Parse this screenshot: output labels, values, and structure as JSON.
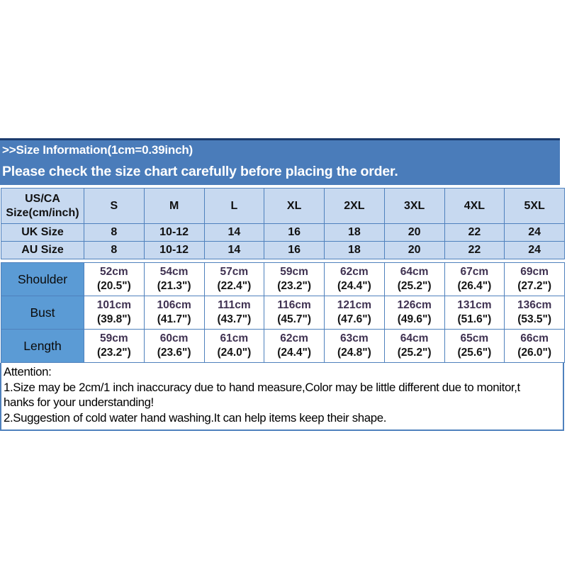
{
  "banner": {
    "title": ">>Size Information(1cm=0.39inch)",
    "subtitle": "Please check the size chart carefully before placing the order."
  },
  "chart_data": {
    "type": "table",
    "title": "Size Information (1cm = 0.39inch)",
    "header": {
      "col0_line1": "US/CA",
      "col0_line2": "Size(cm/inch)",
      "sizes": [
        "S",
        "M",
        "L",
        "XL",
        "2XL",
        "3XL",
        "4XL",
        "5XL"
      ]
    },
    "uk_row": {
      "label": "UK Size",
      "values": [
        "8",
        "10-12",
        "14",
        "16",
        "18",
        "20",
        "22",
        "24"
      ]
    },
    "au_row": {
      "label": "AU Size",
      "values": [
        "8",
        "10-12",
        "14",
        "16",
        "18",
        "20",
        "22",
        "24"
      ]
    },
    "measure_rows": [
      {
        "label": "Shoulder",
        "cm": [
          "52cm",
          "54cm",
          "57cm",
          "59cm",
          "62cm",
          "64cm",
          "67cm",
          "69cm"
        ],
        "inch": [
          "(20.5\")",
          "(21.3\")",
          "(22.4\")",
          "(23.2\")",
          "(24.4\")",
          "(25.2\")",
          "(26.4\")",
          "(27.2\")"
        ]
      },
      {
        "label": "Bust",
        "cm": [
          "101cm",
          "106cm",
          "111cm",
          "116cm",
          "121cm",
          "126cm",
          "131cm",
          "136cm"
        ],
        "inch": [
          "(39.8\")",
          "(41.7\")",
          "(43.7\")",
          "(45.7\")",
          "(47.6\")",
          "(49.6\")",
          "(51.6\")",
          "(53.5\")"
        ]
      },
      {
        "label": "Length",
        "cm": [
          "59cm",
          "60cm",
          "61cm",
          "62cm",
          "63cm",
          "64cm",
          "65cm",
          "66cm"
        ],
        "inch": [
          "(23.2\")",
          "(23.6\")",
          "(24.0\")",
          "(24.4\")",
          "(24.8\")",
          "(25.2\")",
          "(25.6\")",
          "(26.0\")"
        ]
      }
    ]
  },
  "attention": {
    "lines": [
      "Attention:",
      "1.Size may be 2cm/1 inch inaccuracy due to hand measure,Color may be little different due to monitor,t",
      "hanks for your understanding!",
      "2.Suggestion of cold water hand washing.It can help items keep their shape."
    ]
  },
  "colors": {
    "banner_blue": "#4a7cba",
    "banner_top_line": "#1c3c6e",
    "header_light_blue": "#c7d9f0",
    "label_medium_blue": "#5b9bd5",
    "table_border_blue": "#4f81bd",
    "cm_value_text": "#3f3151",
    "inch_value_text": "#141414"
  }
}
